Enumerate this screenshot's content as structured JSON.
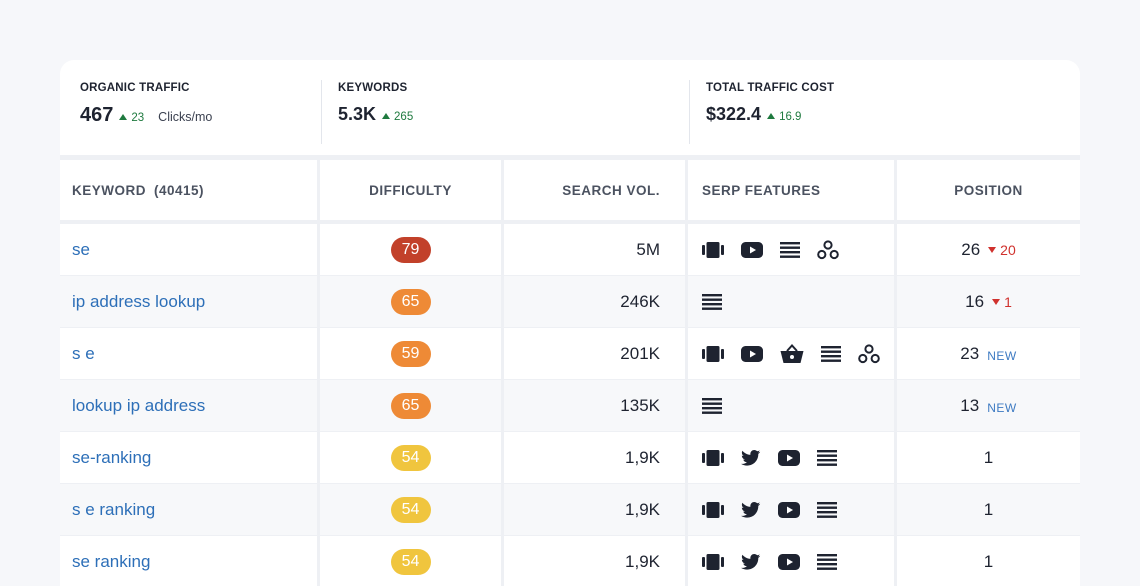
{
  "stats": [
    {
      "label": "ORGANIC TRAFFIC",
      "value": "467",
      "delta": "23",
      "unit": "Clicks/mo"
    },
    {
      "label": "KEYWORDS",
      "value": "5.3K",
      "delta": "265"
    },
    {
      "label": "TOTAL TRAFFIC COST",
      "value": "$322.4",
      "delta": "16.9"
    }
  ],
  "table": {
    "headers": {
      "keyword": "KEYWORD",
      "keyword_count": "(40415)",
      "difficulty": "DIFFICULTY",
      "search_vol": "SEARCH VOL.",
      "serp_features": "SERP FEATURES",
      "position": "POSITION"
    },
    "rows": [
      {
        "keyword": "se",
        "difficulty": "79",
        "difficulty_color": "#c2412a",
        "volume": "5M",
        "features": [
          "carousel-icon",
          "youtube-icon",
          "list-icon",
          "people-icon"
        ],
        "position": "26",
        "change": "20",
        "change_type": "down"
      },
      {
        "keyword": "ip address lookup",
        "difficulty": "65",
        "difficulty_color": "#ee8a36",
        "volume": "246K",
        "features": [
          "list-icon"
        ],
        "position": "16",
        "change": "1",
        "change_type": "down"
      },
      {
        "keyword": "s e",
        "difficulty": "59",
        "difficulty_color": "#ee8a36",
        "volume": "201K",
        "features": [
          "carousel-icon",
          "youtube-icon",
          "shopping-basket-icon",
          "list-icon",
          "people-icon"
        ],
        "position": "23",
        "change": "NEW",
        "change_type": "new"
      },
      {
        "keyword": "lookup ip address",
        "difficulty": "65",
        "difficulty_color": "#ee8a36",
        "volume": "135K",
        "features": [
          "list-icon"
        ],
        "position": "13",
        "change": "NEW",
        "change_type": "new"
      },
      {
        "keyword": "se-ranking",
        "difficulty": "54",
        "difficulty_color": "#f0c53e",
        "volume": "1,9K",
        "features": [
          "carousel-icon",
          "twitter-icon",
          "youtube-icon",
          "list-icon"
        ],
        "position": "1",
        "change": "",
        "change_type": "none"
      },
      {
        "keyword": "s e ranking",
        "difficulty": "54",
        "difficulty_color": "#f0c53e",
        "volume": "1,9K",
        "features": [
          "carousel-icon",
          "twitter-icon",
          "youtube-icon",
          "list-icon"
        ],
        "position": "1",
        "change": "",
        "change_type": "none"
      },
      {
        "keyword": "se ranking",
        "difficulty": "54",
        "difficulty_color": "#f0c53e",
        "volume": "1,9K",
        "features": [
          "carousel-icon",
          "twitter-icon",
          "youtube-icon",
          "list-icon"
        ],
        "position": "1",
        "change": "",
        "change_type": "none"
      }
    ]
  },
  "colors": {
    "link": "#2d6fb8",
    "positive": "#1f7a3f",
    "negative": "#d0312d",
    "new_badge": "#3d7ac2"
  }
}
